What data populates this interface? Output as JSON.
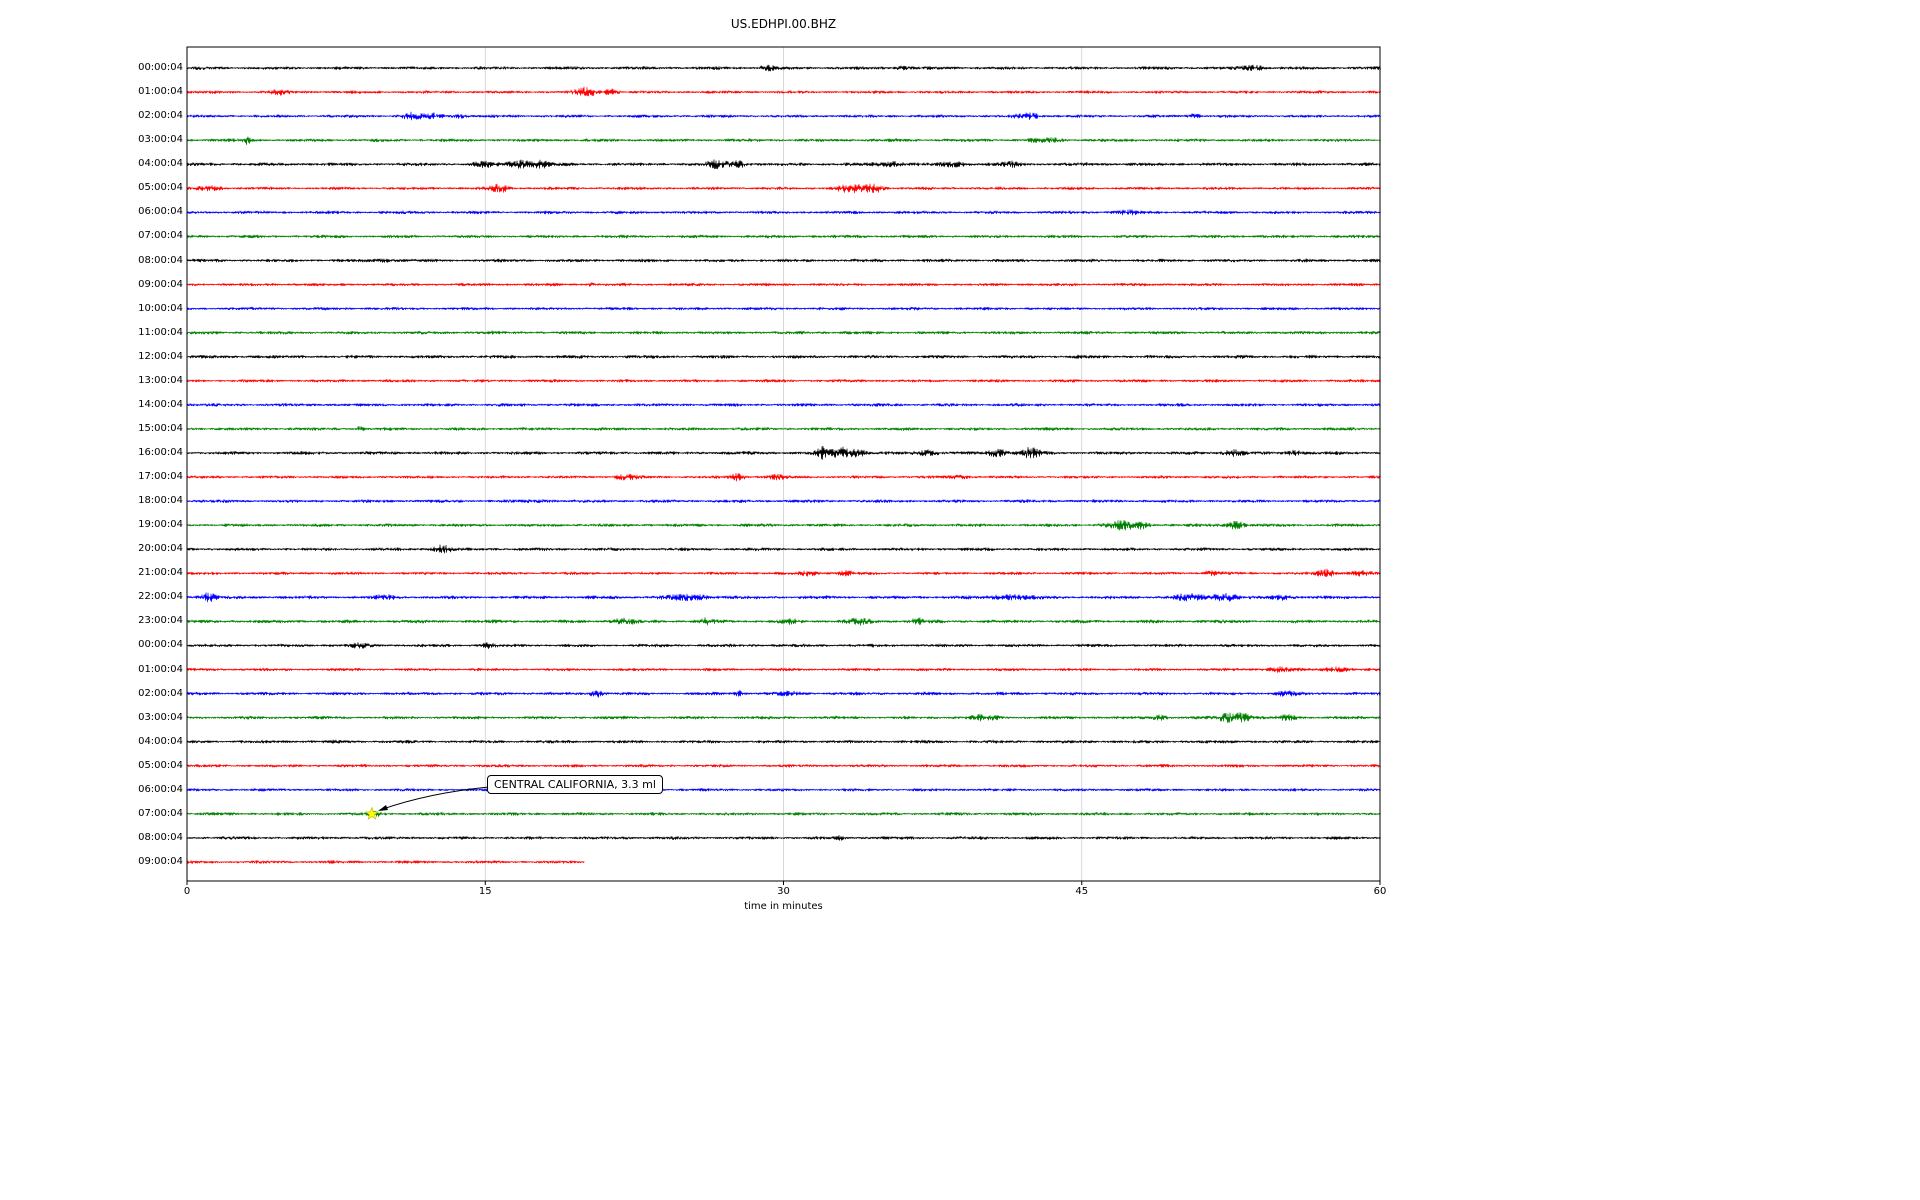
{
  "page_title": "US.EDHPI.00.BHZ",
  "colors": {
    "background": "#ffffff",
    "frame": "#000000",
    "grid": "#cccccc",
    "trace_cycle": [
      "#000000",
      "#ff0000",
      "#0000ff",
      "#008000"
    ],
    "event_marker": "#ffff00"
  },
  "chart_data": {
    "type": "line",
    "subtype": "seismogram-dayplot",
    "title": "US.EDHPI.00.BHZ",
    "xlabel": "time in minutes",
    "xlim": [
      0,
      60
    ],
    "xticks": [
      0,
      15,
      30,
      45,
      60
    ],
    "xtick_labels": [
      "0",
      "15",
      "30",
      "45",
      "60"
    ],
    "grid_vertical": true,
    "legend": "none",
    "minutes_per_row": 60,
    "annotation": {
      "text": "CENTRAL CALIFORNIA, 3.3 ml"
    },
    "event_marker": {
      "row_index": 31,
      "row_label": "07:00:04",
      "minute": 9.3,
      "marker": "star",
      "color": "#ffff00"
    },
    "rows": [
      {
        "label": "00:00:04",
        "color": "#000000",
        "base": 1.4,
        "end": 60,
        "events": [
          {
            "m": 29.2,
            "a": 1.5,
            "w": 0.3
          },
          {
            "m": 36.0,
            "a": 1.0,
            "w": 0.3
          },
          {
            "m": 53.6,
            "a": 1.5,
            "w": 0.4
          }
        ]
      },
      {
        "label": "01:00:04",
        "color": "#ff0000",
        "base": 1.3,
        "end": 60,
        "events": [
          {
            "m": 4.6,
            "a": 1.5,
            "w": 0.3
          },
          {
            "m": 20.0,
            "a": 3.0,
            "w": 0.4
          },
          {
            "m": 21.3,
            "a": 2.0,
            "w": 0.25
          }
        ]
      },
      {
        "label": "02:00:04",
        "color": "#0000ff",
        "base": 1.3,
        "end": 60,
        "events": [
          {
            "m": 11.3,
            "a": 2.5,
            "w": 0.35
          },
          {
            "m": 12.4,
            "a": 1.8,
            "w": 0.3
          },
          {
            "m": 13.7,
            "a": 1.5,
            "w": 0.25
          },
          {
            "m": 42.3,
            "a": 2.0,
            "w": 0.4
          },
          {
            "m": 50.6,
            "a": 1.5,
            "w": 0.25
          }
        ]
      },
      {
        "label": "03:00:04",
        "color": "#008000",
        "base": 1.4,
        "end": 60,
        "events": [
          {
            "m": 3.0,
            "a": 2.8,
            "w": 0.12
          },
          {
            "m": 43.2,
            "a": 1.5,
            "w": 0.5
          }
        ]
      },
      {
        "label": "04:00:04",
        "color": "#000000",
        "base": 1.5,
        "end": 60,
        "events": [
          {
            "m": 14.9,
            "a": 1.8,
            "w": 0.3
          },
          {
            "m": 16.8,
            "a": 2.2,
            "w": 0.5
          },
          {
            "m": 17.8,
            "a": 1.8,
            "w": 0.3
          },
          {
            "m": 26.7,
            "a": 2.5,
            "w": 0.35
          },
          {
            "m": 27.7,
            "a": 2.5,
            "w": 0.25
          },
          {
            "m": 35.4,
            "a": 1.5,
            "w": 0.5
          },
          {
            "m": 38.6,
            "a": 1.5,
            "w": 0.4
          },
          {
            "m": 41.5,
            "a": 1.2,
            "w": 0.4
          }
        ]
      },
      {
        "label": "05:00:04",
        "color": "#ff0000",
        "base": 1.3,
        "end": 60,
        "events": [
          {
            "m": 1.2,
            "a": 1.5,
            "w": 0.4
          },
          {
            "m": 15.7,
            "a": 2.5,
            "w": 0.35
          },
          {
            "m": 33.3,
            "a": 3.0,
            "w": 0.45
          },
          {
            "m": 34.5,
            "a": 3.0,
            "w": 0.35
          }
        ]
      },
      {
        "label": "06:00:04",
        "color": "#0000ff",
        "base": 1.4,
        "end": 60,
        "events": [
          {
            "m": 47.2,
            "a": 1.2,
            "w": 0.4
          }
        ]
      },
      {
        "label": "07:00:04",
        "color": "#008000",
        "base": 1.4,
        "end": 60,
        "events": []
      },
      {
        "label": "08:00:04",
        "color": "#000000",
        "base": 1.4,
        "end": 60,
        "events": [
          {
            "m": 10.0,
            "a": 0.8,
            "w": 0.5
          }
        ]
      },
      {
        "label": "09:00:04",
        "color": "#ff0000",
        "base": 1.3,
        "end": 60,
        "events": [
          {
            "m": 20.3,
            "a": 1.5,
            "w": 0.1
          }
        ]
      },
      {
        "label": "10:00:04",
        "color": "#0000ff",
        "base": 1.3,
        "end": 60,
        "events": []
      },
      {
        "label": "11:00:04",
        "color": "#008000",
        "base": 1.4,
        "end": 60,
        "events": []
      },
      {
        "label": "12:00:04",
        "color": "#000000",
        "base": 1.5,
        "end": 60,
        "events": []
      },
      {
        "label": "13:00:04",
        "color": "#ff0000",
        "base": 1.3,
        "end": 60,
        "events": []
      },
      {
        "label": "14:00:04",
        "color": "#0000ff",
        "base": 1.4,
        "end": 60,
        "events": []
      },
      {
        "label": "15:00:04",
        "color": "#008000",
        "base": 1.4,
        "end": 60,
        "events": [
          {
            "m": 8.7,
            "a": 1.5,
            "w": 0.12
          }
        ]
      },
      {
        "label": "16:00:04",
        "color": "#000000",
        "base": 1.5,
        "end": 60,
        "events": [
          {
            "m": 32.0,
            "a": 3.5,
            "w": 0.25
          },
          {
            "m": 32.9,
            "a": 3.5,
            "w": 0.3
          },
          {
            "m": 33.7,
            "a": 3.0,
            "w": 0.25
          },
          {
            "m": 37.2,
            "a": 1.8,
            "w": 0.35
          },
          {
            "m": 40.7,
            "a": 2.2,
            "w": 0.4
          },
          {
            "m": 42.4,
            "a": 2.8,
            "w": 0.4
          },
          {
            "m": 52.6,
            "a": 1.8,
            "w": 0.35
          },
          {
            "m": 55.7,
            "a": 1.5,
            "w": 0.3
          }
        ]
      },
      {
        "label": "17:00:04",
        "color": "#ff0000",
        "base": 1.3,
        "end": 60,
        "events": [
          {
            "m": 22.1,
            "a": 1.8,
            "w": 0.4
          },
          {
            "m": 27.7,
            "a": 2.5,
            "w": 0.25
          },
          {
            "m": 29.6,
            "a": 1.6,
            "w": 0.3
          },
          {
            "m": 38.9,
            "a": 1.2,
            "w": 0.3
          }
        ]
      },
      {
        "label": "18:00:04",
        "color": "#0000ff",
        "base": 1.4,
        "end": 60,
        "events": [
          {
            "m": 17.8,
            "a": 0.8,
            "w": 0.4
          }
        ]
      },
      {
        "label": "19:00:04",
        "color": "#008000",
        "base": 1.4,
        "end": 60,
        "events": [
          {
            "m": 46.9,
            "a": 2.5,
            "w": 0.45
          },
          {
            "m": 47.9,
            "a": 2.2,
            "w": 0.35
          },
          {
            "m": 52.7,
            "a": 2.5,
            "w": 0.35
          }
        ]
      },
      {
        "label": "20:00:04",
        "color": "#000000",
        "base": 1.4,
        "end": 60,
        "events": [
          {
            "m": 12.8,
            "a": 2.5,
            "w": 0.3
          }
        ]
      },
      {
        "label": "21:00:04",
        "color": "#ff0000",
        "base": 1.3,
        "end": 60,
        "events": [
          {
            "m": 31.3,
            "a": 1.6,
            "w": 0.3
          },
          {
            "m": 33.1,
            "a": 1.6,
            "w": 0.3
          },
          {
            "m": 51.5,
            "a": 1.6,
            "w": 0.3
          },
          {
            "m": 57.3,
            "a": 2.5,
            "w": 0.35
          },
          {
            "m": 59.0,
            "a": 1.8,
            "w": 0.35
          }
        ]
      },
      {
        "label": "22:00:04",
        "color": "#0000ff",
        "base": 1.5,
        "end": 60,
        "events": [
          {
            "m": 1.0,
            "a": 2.5,
            "w": 0.3
          },
          {
            "m": 10.0,
            "a": 1.5,
            "w": 0.3
          },
          {
            "m": 25.3,
            "a": 1.5,
            "w": 0.8
          },
          {
            "m": 41.4,
            "a": 1.5,
            "w": 0.7
          },
          {
            "m": 50.4,
            "a": 1.8,
            "w": 0.5
          },
          {
            "m": 52.2,
            "a": 2.2,
            "w": 0.5
          },
          {
            "m": 55.1,
            "a": 1.5,
            "w": 0.3
          }
        ]
      },
      {
        "label": "23:00:04",
        "color": "#008000",
        "base": 1.5,
        "end": 60,
        "events": [
          {
            "m": 21.9,
            "a": 1.8,
            "w": 0.4
          },
          {
            "m": 26.1,
            "a": 1.5,
            "w": 0.3
          },
          {
            "m": 30.3,
            "a": 1.2,
            "w": 0.3
          },
          {
            "m": 33.7,
            "a": 1.8,
            "w": 0.4
          },
          {
            "m": 36.7,
            "a": 1.5,
            "w": 0.3
          }
        ]
      },
      {
        "label": "00:00:04",
        "color": "#000000",
        "base": 1.4,
        "end": 60,
        "events": [
          {
            "m": 8.7,
            "a": 1.5,
            "w": 0.3
          },
          {
            "m": 15.1,
            "a": 1.5,
            "w": 0.2
          }
        ]
      },
      {
        "label": "01:00:04",
        "color": "#ff0000",
        "base": 1.3,
        "end": 60,
        "events": [
          {
            "m": 54.9,
            "a": 1.5,
            "w": 0.5
          },
          {
            "m": 57.8,
            "a": 1.8,
            "w": 0.4
          }
        ]
      },
      {
        "label": "02:00:04",
        "color": "#0000ff",
        "base": 1.4,
        "end": 60,
        "events": [
          {
            "m": 20.6,
            "a": 2.2,
            "w": 0.25
          },
          {
            "m": 27.8,
            "a": 1.5,
            "w": 0.2
          },
          {
            "m": 30.3,
            "a": 1.2,
            "w": 0.4
          },
          {
            "m": 55.3,
            "a": 1.2,
            "w": 0.4
          }
        ]
      },
      {
        "label": "03:00:04",
        "color": "#008000",
        "base": 1.4,
        "end": 60,
        "events": [
          {
            "m": 40.1,
            "a": 1.5,
            "w": 0.5
          },
          {
            "m": 48.9,
            "a": 1.5,
            "w": 0.3
          },
          {
            "m": 52.3,
            "a": 3.0,
            "w": 0.3
          },
          {
            "m": 53.1,
            "a": 3.0,
            "w": 0.3
          },
          {
            "m": 55.4,
            "a": 1.5,
            "w": 0.3
          }
        ]
      },
      {
        "label": "04:00:04",
        "color": "#000000",
        "base": 1.4,
        "end": 60,
        "events": []
      },
      {
        "label": "05:00:04",
        "color": "#ff0000",
        "base": 1.3,
        "end": 60,
        "events": []
      },
      {
        "label": "06:00:04",
        "color": "#0000ff",
        "base": 1.3,
        "end": 60,
        "events": []
      },
      {
        "label": "07:00:04",
        "color": "#008000",
        "base": 1.4,
        "end": 60,
        "events": [
          {
            "m": 9.5,
            "a": 1.0,
            "w": 0.3
          }
        ]
      },
      {
        "label": "08:00:04",
        "color": "#000000",
        "base": 1.4,
        "end": 60,
        "events": [
          {
            "m": 32.8,
            "a": 1.8,
            "w": 0.1
          }
        ]
      },
      {
        "label": "09:00:04",
        "color": "#ff0000",
        "base": 1.3,
        "end": 20,
        "events": []
      }
    ]
  }
}
